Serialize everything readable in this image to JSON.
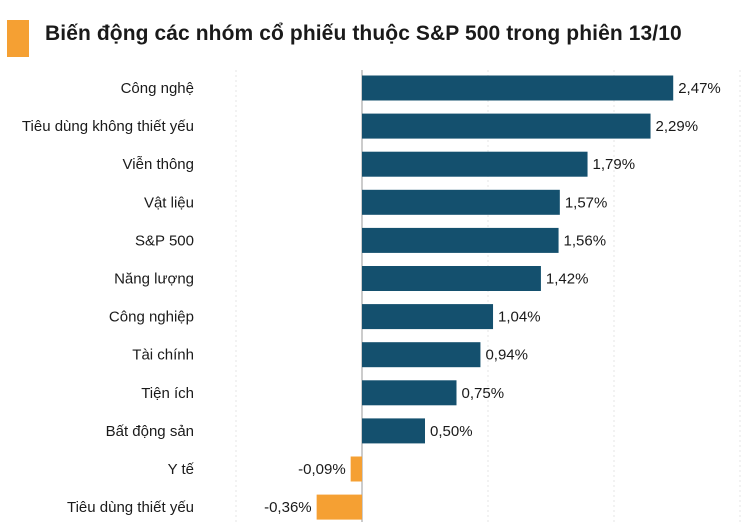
{
  "colors": {
    "accent": "#f5a033",
    "positive": "#14506e",
    "negative": "#f5a033",
    "axis": "#999999",
    "grid": "#e6e6e6"
  },
  "chart_data": {
    "type": "bar",
    "orientation": "horizontal",
    "title": "Biến động các nhóm cổ phiếu thuộc S&P 500 trong phiên 13/10",
    "categories": [
      "Công nghệ",
      "Tiêu dùng không thiết yếu",
      "Viễn thông",
      "Vật liệu",
      "S&P 500",
      "Năng lượng",
      "Công nghiệp",
      "Tài chính",
      "Tiện ích",
      "Bất động sản",
      "Y tế",
      "Tiêu dùng thiết yếu"
    ],
    "values": [
      2.47,
      2.29,
      1.79,
      1.57,
      1.56,
      1.42,
      1.04,
      0.94,
      0.75,
      0.5,
      -0.09,
      -0.36
    ],
    "value_labels": [
      "2,47%",
      "2,29%",
      "1,79%",
      "1,57%",
      "1,56%",
      "1,42%",
      "1,04%",
      "0,94%",
      "0,75%",
      "0,50%",
      "-0,09%",
      "-0,36%"
    ],
    "unit": "%",
    "grid": true,
    "legend": "none"
  }
}
